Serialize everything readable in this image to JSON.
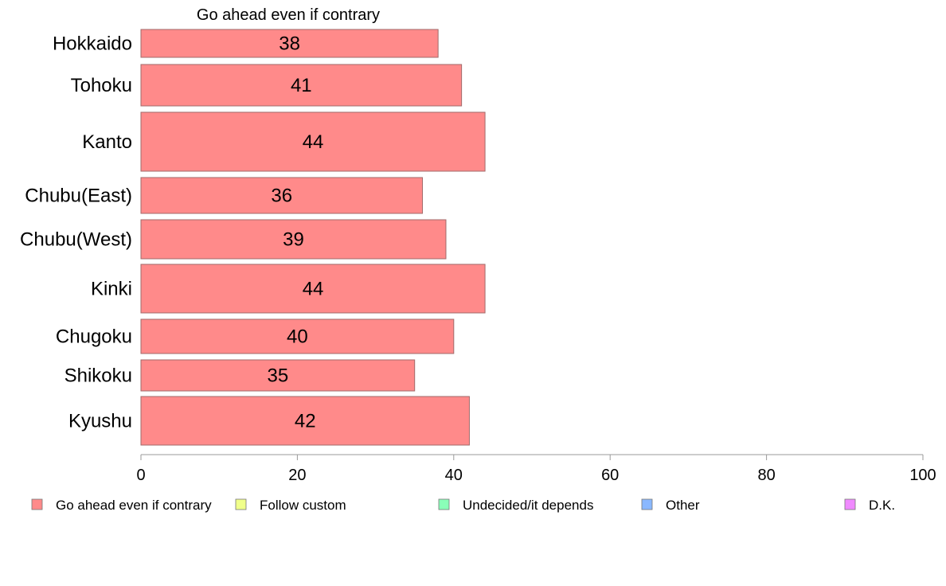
{
  "colors": {
    "series": [
      "#ff8a8a",
      "#f0ff8a",
      "#8affb8",
      "#8ab8ff",
      "#f08aff"
    ],
    "bar_stroke": "#a06a6a",
    "axis": "#9a9a9a"
  },
  "chart_data": {
    "type": "bar",
    "orientation": "horizontal",
    "stacked": true,
    "title": "Go ahead even if contrary",
    "categories": [
      "Hokkaido",
      "Tohoku",
      "Kanto",
      "Chubu(East)",
      "Chubu(West)",
      "Kinki",
      "Chugoku",
      "Shikoku",
      "Kyushu"
    ],
    "series": [
      {
        "name": "Go ahead even if contrary",
        "values": [
          38,
          41,
          44,
          36,
          39,
          44,
          40,
          35,
          42
        ]
      }
    ],
    "data_labels": [
      "38",
      "41",
      "44",
      "36",
      "39",
      "44",
      "40",
      "35",
      "42"
    ],
    "legend": [
      "Go ahead even if contrary",
      "Follow custom",
      "Undecided/it depends",
      "Other",
      "D.K."
    ],
    "xlim": [
      0,
      100
    ],
    "xticks": [
      0,
      20,
      40,
      60,
      80,
      100
    ],
    "xtick_labels": [
      "0",
      "20",
      "40",
      "60",
      "80",
      "100"
    ],
    "legend_position": "bottom",
    "grid": false
  }
}
